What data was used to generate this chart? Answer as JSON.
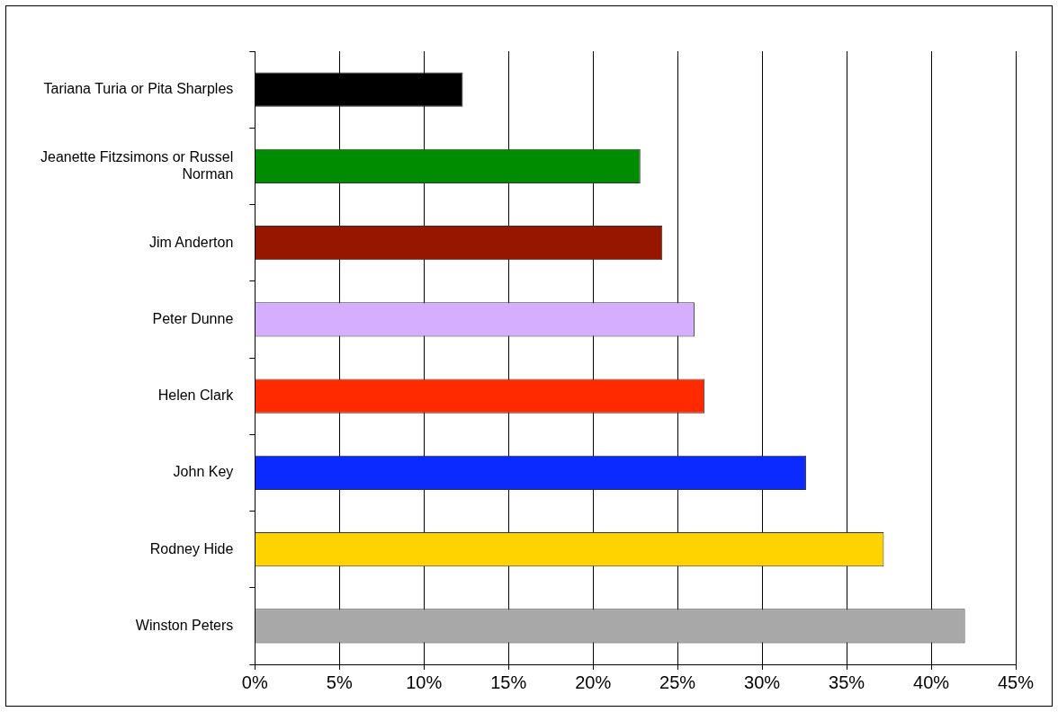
{
  "chart_data": {
    "type": "bar",
    "orientation": "horizontal",
    "categories": [
      "Tariana Turia or Pita Sharples",
      "Jeanette Fitzsimons or Russel Norman",
      "Jim Anderton",
      "Peter Dunne",
      "Helen Clark",
      "John Key",
      "Rodney Hide",
      "Winston Peters"
    ],
    "values": [
      12.3,
      22.8,
      24.1,
      26.0,
      26.6,
      32.6,
      37.2,
      42.0
    ],
    "colors": [
      "#000000",
      "#008c00",
      "#961600",
      "#d6aeff",
      "#ff2a00",
      "#0a2aff",
      "#ffd300",
      "#a8a8a8"
    ],
    "xlim": [
      0,
      45
    ],
    "xticks": [
      {
        "value": 0,
        "label": "0%"
      },
      {
        "value": 5,
        "label": "5%"
      },
      {
        "value": 10,
        "label": "10%"
      },
      {
        "value": 15,
        "label": "15%"
      },
      {
        "value": 20,
        "label": "20%"
      },
      {
        "value": 25,
        "label": "25%"
      },
      {
        "value": 30,
        "label": "30%"
      },
      {
        "value": 35,
        "label": "35%"
      },
      {
        "value": 40,
        "label": "40%"
      },
      {
        "value": 45,
        "label": "45%"
      }
    ],
    "grid": "x",
    "legend": false
  }
}
